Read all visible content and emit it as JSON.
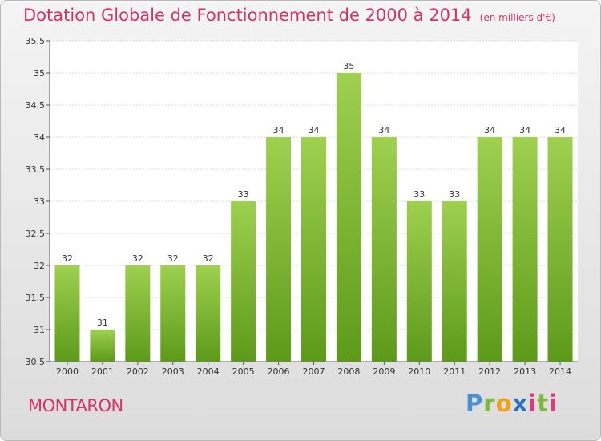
{
  "title": "Dotation Globale de Fonctionnement de 2000 à 2014",
  "subtitle": "(en milliers d'€)",
  "commune": "MONTARON",
  "logo": "Proxiti",
  "colors": {
    "title": "#d2336b",
    "bar_top": "#9fd04f",
    "bar_bottom": "#5d9a1a"
  },
  "chart_data": {
    "type": "bar",
    "title": "Dotation Globale de Fonctionnement de 2000 à 2014",
    "subtitle": "(en milliers d'€)",
    "categories": [
      "2000",
      "2001",
      "2002",
      "2003",
      "2004",
      "2005",
      "2006",
      "2007",
      "2008",
      "2009",
      "2010",
      "2011",
      "2012",
      "2013",
      "2014"
    ],
    "values": [
      32,
      31,
      32,
      32,
      32,
      33,
      34,
      34,
      35,
      34,
      33,
      33,
      34,
      34,
      34
    ],
    "value_labels": [
      "32",
      "31",
      "32",
      "32",
      "32",
      "33",
      "34",
      "34",
      "35",
      "34",
      "33",
      "33",
      "34",
      "34",
      "34"
    ],
    "yticks": [
      "30.5",
      "31",
      "31.5",
      "32",
      "32.5",
      "33",
      "33.5",
      "34",
      "34.5",
      "35",
      "35.5"
    ],
    "ylim": [
      30.5,
      35.5
    ],
    "grid": true,
    "xlabel": "",
    "ylabel": ""
  }
}
